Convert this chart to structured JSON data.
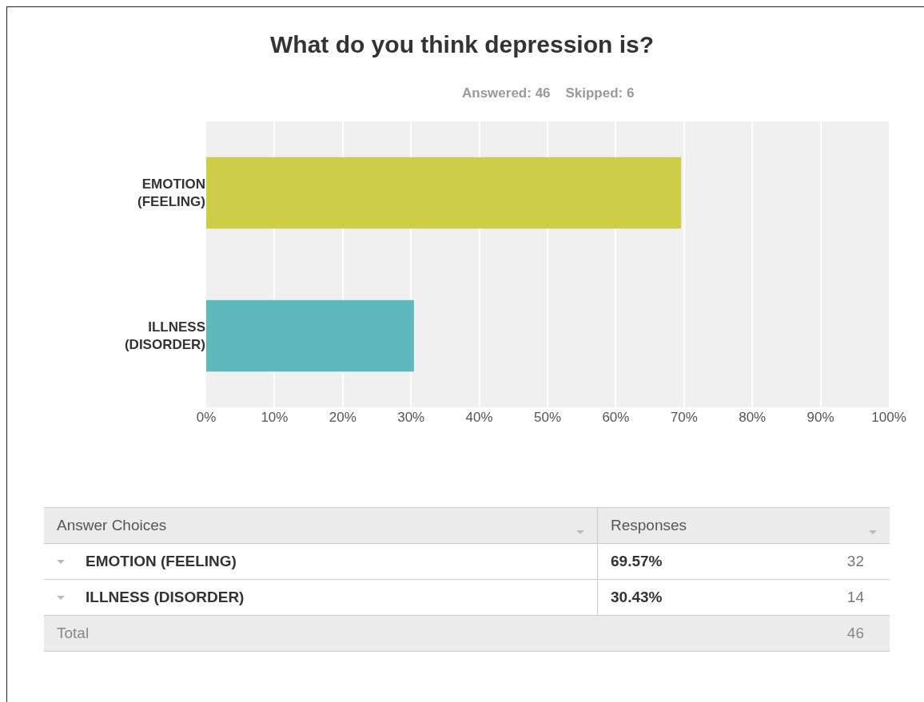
{
  "chart_data": {
    "type": "bar",
    "orientation": "horizontal",
    "title": "What do you think depression is?",
    "subtitle": "Answered: 46    Skipped: 6",
    "categories": [
      "EMOTION (FEELING)",
      "ILLNESS (DISORDER)"
    ],
    "values": [
      69.57,
      30.43
    ],
    "colors": [
      "#cdcd47",
      "#5fb8bc"
    ],
    "xlim": [
      0,
      100
    ],
    "xticks": [
      {
        "value": 0,
        "label": "0%"
      },
      {
        "value": 10,
        "label": "10%"
      },
      {
        "value": 20,
        "label": "20%"
      },
      {
        "value": 30,
        "label": "30%"
      },
      {
        "value": 40,
        "label": "40%"
      },
      {
        "value": 50,
        "label": "50%"
      },
      {
        "value": 60,
        "label": "60%"
      },
      {
        "value": 70,
        "label": "70%"
      },
      {
        "value": 80,
        "label": "80%"
      },
      {
        "value": 90,
        "label": "90%"
      },
      {
        "value": 100,
        "label": "100%"
      }
    ],
    "grid": "x",
    "annotations": [
      "Answer Choices",
      "Responses",
      "69.57%",
      "32",
      "30.43%",
      "14",
      "Total",
      "46"
    ]
  }
}
